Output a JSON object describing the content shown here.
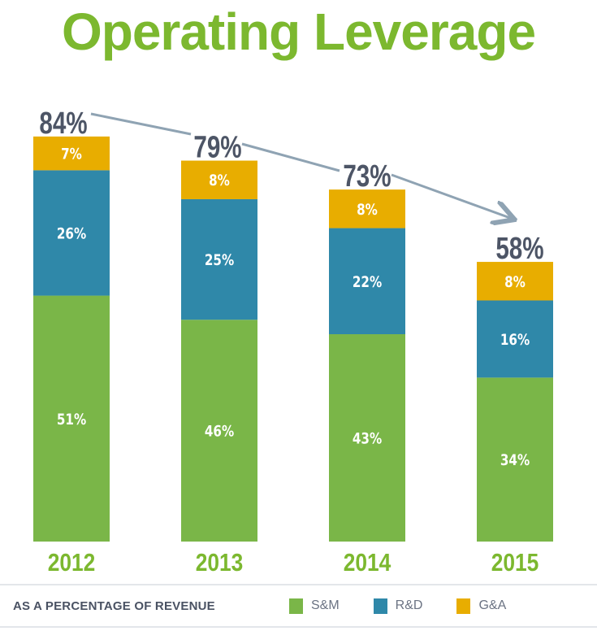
{
  "chart_data": {
    "type": "bar",
    "stacked": true,
    "title": "Operating Leverage",
    "categories": [
      "2012",
      "2013",
      "2014",
      "2015"
    ],
    "series": [
      {
        "name": "S&M",
        "values": [
          51,
          46,
          43,
          34
        ],
        "color": "#7ab648"
      },
      {
        "name": "R&D",
        "values": [
          26,
          25,
          22,
          16
        ],
        "color": "#2f88a9"
      },
      {
        "name": "G&A",
        "values": [
          7,
          8,
          8,
          8
        ],
        "color": "#e8ad00"
      }
    ],
    "totals": [
      84,
      79,
      73,
      58
    ],
    "value_suffix": "%",
    "ylim": [
      0,
      84
    ],
    "legend_title": "AS A PERCENTAGE OF REVENUE",
    "legend_position": "bottom",
    "grid": false
  }
}
